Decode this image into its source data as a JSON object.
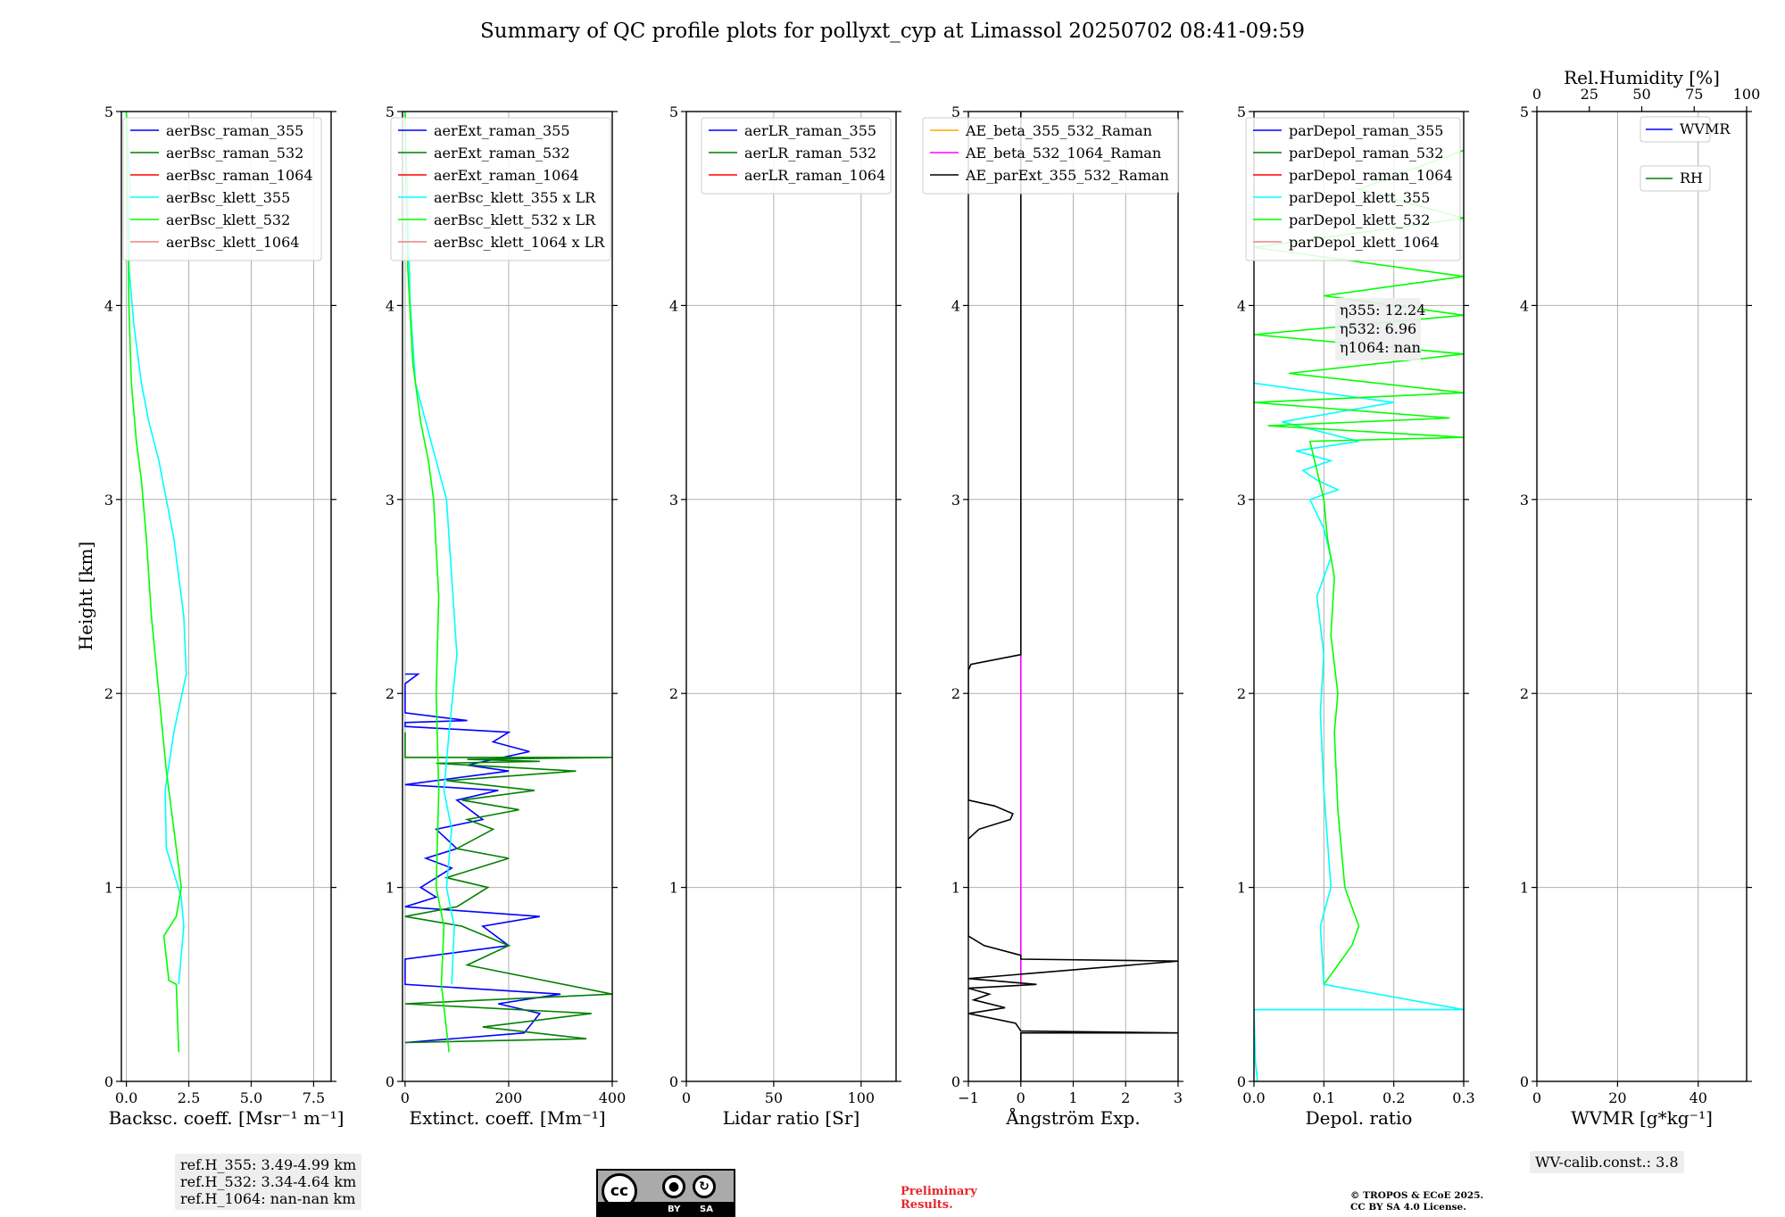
{
  "title": "Summary of QC profile plots for pollyxt_cyp at Limassol 20250702 08:41-09:59",
  "ylabel": "Height [km]",
  "ref_heights": [
    "ref.H_355: 3.49-4.99 km",
    "ref.H_532: 3.34-4.64 km",
    "ref.H_1064: nan-nan km"
  ],
  "wv_calib": "WV-calib.const.: 3.8",
  "eta": [
    "η355: 12.24",
    "η532: 6.96",
    "η1064: nan"
  ],
  "preliminary": [
    "Preliminary",
    "Results."
  ],
  "copyright": [
    "© TROPOS & ECoE 2025.",
    "CC BY SA 4.0 License."
  ],
  "license": {
    "cc": "cc",
    "by": "BY",
    "sa": "SA"
  },
  "colors": {
    "blue": "#0000ff",
    "green": "#008000",
    "red": "#ff0000",
    "cyan": "#00ffff",
    "lime": "#00ff00",
    "salmon": "#f08080",
    "orange": "#ffa500",
    "magenta": "#ff00ff",
    "black": "#000000"
  },
  "chart_data": [
    {
      "type": "line",
      "id": "bsc",
      "xlabel": "Backsc. coeff. [Msr⁻¹ m⁻¹]",
      "ylabel": "Height [km]",
      "xlim": [
        -0.2,
        8.2
      ],
      "ylim": [
        0,
        5
      ],
      "xticks": [
        0,
        2.5,
        5,
        7.5
      ],
      "xticklabels": [
        "0.0",
        "2.5",
        "5.0",
        "7.5"
      ],
      "yticks": [
        0,
        1,
        2,
        3,
        4,
        5
      ],
      "legend": [
        "aerBsc_raman_355",
        "aerBsc_raman_532",
        "aerBsc_raman_1064",
        "aerBsc_klett_355",
        "aerBsc_klett_532",
        "aerBsc_klett_1064"
      ],
      "legend_colors": [
        "blue",
        "green",
        "red",
        "cyan",
        "lime",
        "salmon"
      ],
      "series": [
        {
          "name": "aerBsc_klett_355",
          "color": "cyan",
          "x": [
            2.1,
            2.3,
            2.2,
            1.6,
            1.55,
            1.9,
            2.4,
            2.3,
            2.1,
            1.9,
            1.6,
            1.3,
            0.9,
            0.6,
            0.5,
            0.3,
            0.1,
            0.15,
            0.0
          ],
          "y": [
            0.5,
            0.8,
            0.95,
            1.2,
            1.5,
            1.8,
            2.1,
            2.4,
            2.6,
            2.8,
            3.0,
            3.2,
            3.4,
            3.6,
            3.7,
            3.9,
            4.2,
            4.6,
            5.0
          ]
        },
        {
          "name": "aerBsc_klett_532",
          "color": "lime",
          "x": [
            2.1,
            2.0,
            1.7,
            1.5,
            2.0,
            2.2,
            1.9,
            1.6,
            1.3,
            1.0,
            0.8,
            0.6,
            0.4,
            0.2,
            0.1,
            0.05,
            0.0
          ],
          "y": [
            0.15,
            0.5,
            0.52,
            0.75,
            0.85,
            1.0,
            1.3,
            1.6,
            2.0,
            2.4,
            2.8,
            3.1,
            3.3,
            3.6,
            4.0,
            4.5,
            5.0
          ]
        }
      ]
    },
    {
      "type": "line",
      "id": "ext",
      "xlabel": "Extinct. coeff. [Mm⁻¹]",
      "xlim": [
        -5,
        400
      ],
      "ylim": [
        0,
        5
      ],
      "xticks": [
        0,
        200,
        400
      ],
      "xticklabels": [
        "0",
        "200",
        "400"
      ],
      "yticks": [
        0,
        1,
        2,
        3,
        4,
        5
      ],
      "legend": [
        "aerExt_raman_355",
        "aerExt_raman_532",
        "aerExt_raman_1064",
        "aerBsc_klett_355 x LR",
        "aerBsc_klett_532 x LR",
        "aerBsc_klett_1064 x LR"
      ],
      "legend_colors": [
        "blue",
        "green",
        "red",
        "cyan",
        "lime",
        "salmon"
      ],
      "series": [
        {
          "name": "aerExt_raman_355",
          "color": "blue",
          "x": [
            0,
            230,
            260,
            180,
            300,
            0,
            0,
            200,
            150,
            260,
            0,
            60,
            30,
            90,
            40,
            100,
            60,
            150,
            100,
            180,
            0,
            200,
            120,
            240,
            170,
            200,
            0,
            0,
            120,
            0,
            0,
            25,
            0
          ],
          "y": [
            0.2,
            0.25,
            0.35,
            0.4,
            0.45,
            0.5,
            0.63,
            0.7,
            0.8,
            0.85,
            0.9,
            0.95,
            1.0,
            1.1,
            1.15,
            1.2,
            1.3,
            1.35,
            1.45,
            1.5,
            1.53,
            1.6,
            1.63,
            1.7,
            1.75,
            1.8,
            1.83,
            1.85,
            1.86,
            1.9,
            2.05,
            2.1,
            2.1
          ]
        },
        {
          "name": "aerExt_raman_532",
          "color": "green",
          "x": [
            0,
            350,
            150,
            360,
            0,
            400,
            120,
            200,
            110,
            0,
            100,
            160,
            80,
            200,
            100,
            170,
            120,
            220,
            110,
            250,
            80,
            330,
            60,
            260,
            120,
            400,
            0,
            0
          ],
          "y": [
            0.2,
            0.22,
            0.28,
            0.35,
            0.4,
            0.45,
            0.6,
            0.7,
            0.8,
            0.85,
            0.9,
            1.0,
            1.05,
            1.15,
            1.2,
            1.3,
            1.35,
            1.4,
            1.45,
            1.5,
            1.55,
            1.6,
            1.64,
            1.65,
            1.66,
            1.67,
            1.67,
            1.8
          ]
        },
        {
          "name": "aerBsc_klett_355 x LR",
          "color": "cyan",
          "x": [
            90,
            95,
            80,
            90,
            75,
            85,
            100,
            90,
            80,
            60,
            40,
            20,
            10,
            5,
            0
          ],
          "y": [
            0.5,
            0.8,
            1.0,
            1.3,
            1.5,
            1.8,
            2.2,
            2.6,
            3.0,
            3.2,
            3.4,
            3.6,
            4.0,
            4.5,
            5.0
          ]
        },
        {
          "name": "aerBsc_klett_532 x LR",
          "color": "lime",
          "x": [
            85,
            70,
            75,
            60,
            65,
            60,
            65,
            55,
            45,
            30,
            15,
            5,
            0
          ],
          "y": [
            0.15,
            0.5,
            0.8,
            1.0,
            1.5,
            2.0,
            2.5,
            3.0,
            3.2,
            3.4,
            3.7,
            4.2,
            5.0
          ]
        }
      ]
    },
    {
      "type": "line",
      "id": "lr",
      "xlabel": "Lidar ratio [Sr]",
      "xlim": [
        0,
        120
      ],
      "ylim": [
        0,
        5
      ],
      "xticks": [
        0,
        50,
        100
      ],
      "xticklabels": [
        "0",
        "50",
        "100"
      ],
      "yticks": [
        0,
        1,
        2,
        3,
        4,
        5
      ],
      "legend": [
        "aerLR_raman_355",
        "aerLR_raman_532",
        "aerLR_raman_1064"
      ],
      "legend_colors": [
        "blue",
        "green",
        "red"
      ],
      "series": []
    },
    {
      "type": "line",
      "id": "ae",
      "xlabel": "Ångström Exp.",
      "xlim": [
        -1,
        3
      ],
      "ylim": [
        0,
        5
      ],
      "xticks": [
        -1,
        0,
        1,
        2,
        3
      ],
      "xticklabels": [
        "−1",
        "0",
        "1",
        "2",
        "3"
      ],
      "yticks": [
        0,
        1,
        2,
        3,
        4,
        5
      ],
      "legend": [
        "AE_beta_355_532_Raman",
        "AE_beta_532_1064_Raman",
        "AE_parExt_355_532_Raman"
      ],
      "legend_colors": [
        "orange",
        "magenta",
        "black"
      ],
      "series": [
        {
          "name": "AE_beta_532_1064_Raman",
          "color": "magenta",
          "x": [
            0,
            0
          ],
          "y": [
            0.5,
            2.2
          ]
        },
        {
          "name": "AE_parExt_355_532_Raman",
          "color": "black",
          "x": [
            0,
            0,
            3.0,
            0,
            -0.1,
            -1.0,
            -0.3,
            -0.9,
            -0.6,
            -1.0,
            0.3,
            -1.0,
            3.0,
            0,
            0,
            -0.7,
            -1,
            -1,
            -0.8,
            -0.2,
            -0.15,
            -0.5,
            -1,
            -1,
            -0.95,
            0,
            0
          ],
          "y": [
            0,
            0.25,
            0.25,
            0.26,
            0.3,
            0.35,
            0.38,
            0.42,
            0.45,
            0.48,
            0.5,
            0.53,
            0.62,
            0.63,
            0.65,
            0.7,
            0.75,
            1.25,
            1.3,
            1.35,
            1.38,
            1.42,
            1.45,
            2.12,
            2.15,
            2.2,
            5.0
          ]
        }
      ]
    },
    {
      "type": "line",
      "id": "depol",
      "xlabel": "Depol. ratio",
      "xlim": [
        0,
        0.3
      ],
      "ylim": [
        0,
        5
      ],
      "xticks": [
        0,
        0.1,
        0.2,
        0.3
      ],
      "xticklabels": [
        "0.0",
        "0.1",
        "0.2",
        "0.3"
      ],
      "yticks": [
        0,
        1,
        2,
        3,
        4,
        5
      ],
      "legend": [
        "parDepol_raman_355",
        "parDepol_raman_532",
        "parDepol_raman_1064",
        "parDepol_klett_355",
        "parDepol_klett_532",
        "parDepol_klett_1064"
      ],
      "legend_colors": [
        "blue",
        "green",
        "red",
        "cyan",
        "lime",
        "salmon"
      ],
      "series": [
        {
          "name": "parDepol_klett_355",
          "color": "cyan",
          "x": [
            0.005,
            0.002,
            0.0,
            0.3,
            0.1,
            0.095,
            0.11,
            0.1,
            0.095,
            0.1,
            0.09,
            0.11,
            0.1,
            0.08,
            0.12,
            0.09,
            0.07,
            0.11,
            0.06,
            0.15,
            0.04,
            0.2,
            0.0
          ],
          "y": [
            0.0,
            0.1,
            0.37,
            0.37,
            0.5,
            0.8,
            1.0,
            1.5,
            1.9,
            2.2,
            2.5,
            2.7,
            2.85,
            3.0,
            3.05,
            3.1,
            3.15,
            3.2,
            3.25,
            3.3,
            3.4,
            3.5,
            3.6
          ]
        },
        {
          "name": "parDepol_klett_532",
          "color": "lime",
          "x": [
            0.1,
            0.12,
            0.14,
            0.15,
            0.13,
            0.12,
            0.115,
            0.12,
            0.11,
            0.115,
            0.105,
            0.1,
            0.09,
            0.08,
            0.3,
            0.02,
            0.28,
            0.0,
            0.3,
            0.05,
            0.3,
            0.0,
            0.3,
            0.1,
            0.3,
            0.0,
            0.3,
            0.15,
            0.3
          ],
          "y": [
            0.5,
            0.6,
            0.7,
            0.8,
            1.0,
            1.4,
            1.8,
            2.0,
            2.3,
            2.6,
            2.8,
            3.0,
            3.15,
            3.3,
            3.32,
            3.38,
            3.42,
            3.5,
            3.55,
            3.65,
            3.75,
            3.85,
            3.95,
            4.05,
            4.15,
            4.3,
            4.45,
            4.6,
            4.8
          ]
        }
      ]
    },
    {
      "type": "line",
      "id": "wv",
      "xlabel": "WVMR [g*kg⁻¹]",
      "top_xlabel": "Rel.Humidity [%]",
      "xlim": [
        0,
        52
      ],
      "ylim": [
        0,
        5
      ],
      "xticks": [
        0,
        20,
        40
      ],
      "xticklabels": [
        "0",
        "20",
        "40"
      ],
      "top_xticks": [
        0,
        25,
        50,
        75,
        100
      ],
      "top_xticklabels": [
        "0",
        "25",
        "50",
        "75",
        "100"
      ],
      "yticks": [
        0,
        1,
        2,
        3,
        4,
        5
      ],
      "legend": [
        "WVMR",
        "RH"
      ],
      "legend_colors": [
        "blue",
        "green"
      ],
      "series": []
    }
  ]
}
